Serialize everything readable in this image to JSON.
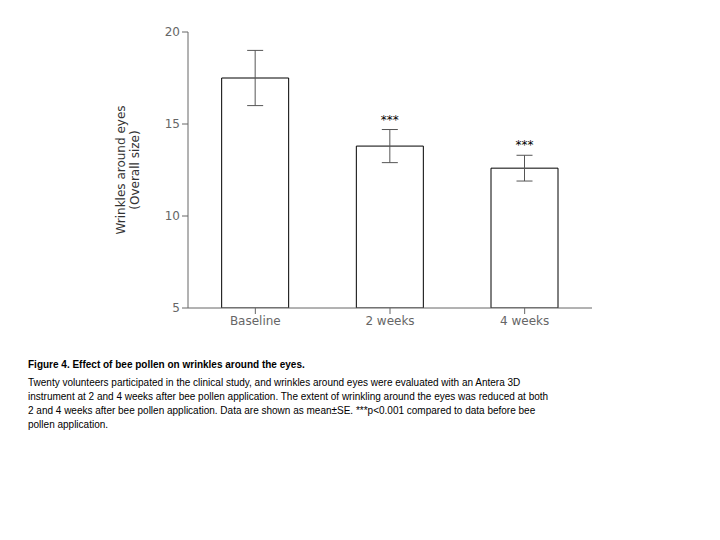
{
  "chart_data": {
    "type": "bar",
    "title": "Figure 4.  Effect of bee pollen on wrinkles around the eyes.",
    "caption": [
      "Twenty volunteers participated in the clinical study, and wrinkles around eyes were evaluated with an Antera 3D",
      "instrument at 2 and 4 weeks after bee pollen application. The extent of wrinkling around the eyes was reduced at both",
      "2 and 4 weeks after bee pollen application. Data are shown as mean±SE. ***p<0.001  compared to data before bee",
      "pollen application."
    ],
    "ylabel": "Wrinkles around eyes\n(Overall size)",
    "categories": [
      "Baseline",
      "2 weeks",
      "4 weeks"
    ],
    "values": [
      17.5,
      13.8,
      12.6
    ],
    "errors": [
      1.5,
      0.9,
      0.7
    ],
    "annotations": [
      null,
      "***",
      "***"
    ],
    "color": "#ffffff",
    "ylim": [
      5,
      20
    ],
    "yticks": [
      5,
      10,
      15,
      20
    ],
    "grid": false
  }
}
